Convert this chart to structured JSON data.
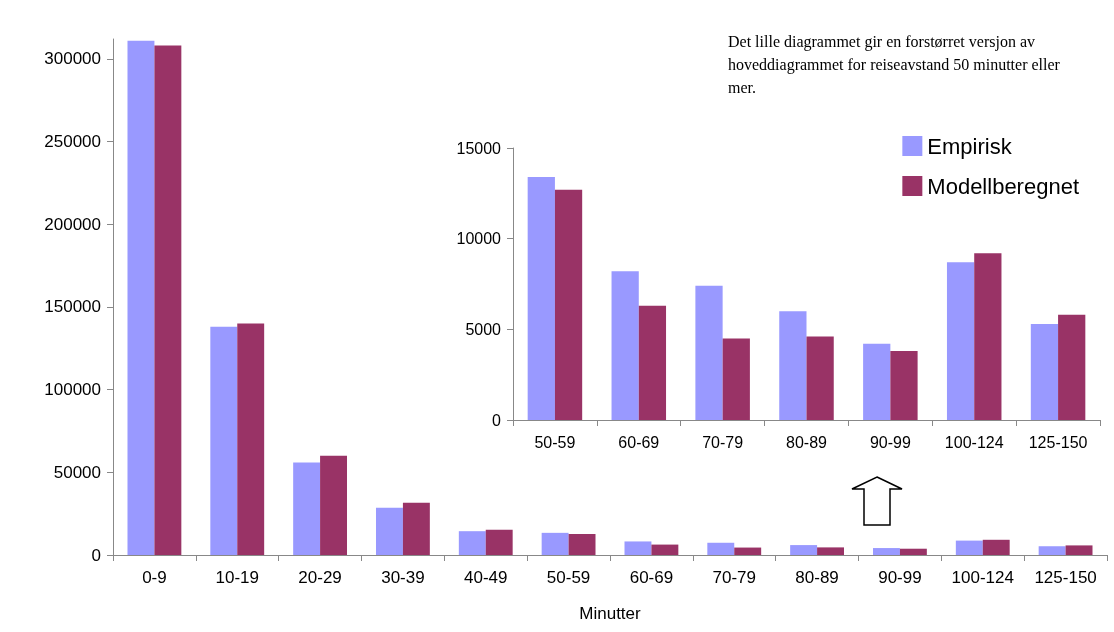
{
  "chart_data": [
    {
      "type": "bar",
      "xlabel": "Minutter",
      "categories": [
        "0-9",
        "10-19",
        "20-29",
        "30-39",
        "40-49",
        "50-59",
        "60-69",
        "70-79",
        "80-89",
        "90-99",
        "100-124",
        "125-150"
      ],
      "series": [
        {
          "color": "#9999ff",
          "values": [
            311000,
            138000,
            56000,
            28600,
            14400,
            13400,
            8200,
            7400,
            6000,
            4200,
            8700,
            5300
          ]
        },
        {
          "color": "#993366",
          "values": [
            308000,
            140000,
            60000,
            31600,
            15300,
            12700,
            6300,
            4500,
            4600,
            3800,
            9200,
            5800
          ]
        }
      ],
      "ylim": [
        0,
        312000
      ],
      "yticks": [
        0,
        50000,
        100000,
        150000,
        200000,
        250000,
        300000
      ],
      "grid": false,
      "legend": false,
      "annotations": [
        "Det lille diagrammet gir en forstørret versjon av hoveddiagrammet for reiseavstand 50 minutter eller mer."
      ]
    },
    {
      "type": "bar",
      "categories": [
        "50-59",
        "60-69",
        "70-79",
        "80-89",
        "90-99",
        "100-124",
        "125-150"
      ],
      "series": [
        {
          "name": "Empirisk",
          "color": "#9999ff",
          "values": [
            13400,
            8200,
            7400,
            6000,
            4200,
            8700,
            5300
          ]
        },
        {
          "name": "Modellberegnet",
          "color": "#993366",
          "values": [
            12700,
            6300,
            4500,
            4600,
            3800,
            9200,
            5800
          ]
        }
      ],
      "ylim": [
        0,
        15000
      ],
      "yticks": [
        0,
        5000,
        10000,
        15000
      ],
      "grid": false,
      "legend": "top right"
    }
  ]
}
